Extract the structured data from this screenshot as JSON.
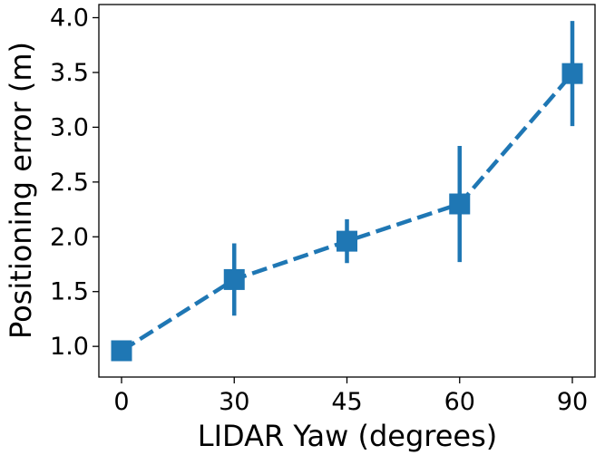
{
  "chart_data": {
    "type": "line",
    "title": "",
    "xlabel": "LIDAR Yaw (degrees)",
    "ylabel": "Positioning error (m)",
    "categories": [
      "0",
      "30",
      "45",
      "60",
      "90"
    ],
    "ylim": [
      0.72,
      4.12
    ],
    "yticks": [
      "1.0",
      "1.5",
      "2.0",
      "2.5",
      "3.0",
      "3.5",
      "4.0"
    ],
    "grid": false,
    "series": [
      {
        "values": [
          0.96,
          1.61,
          1.96,
          2.3,
          3.49
        ],
        "err_low": [
          0.96,
          1.28,
          1.76,
          1.77,
          3.01
        ],
        "err_high": [
          0.96,
          1.94,
          2.16,
          2.83,
          3.97
        ],
        "color": "#1f77b4",
        "line_style": "dashed",
        "marker": "square"
      }
    ]
  }
}
